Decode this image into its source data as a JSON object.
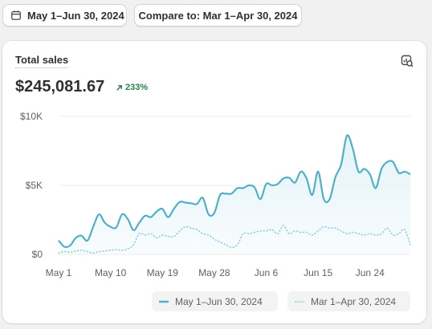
{
  "toolbar": {
    "date_range_label": "May 1–Jun 30, 2024",
    "compare_label": "Compare to: Mar 1–Apr 30, 2024"
  },
  "card": {
    "title": "Total sales",
    "total": "$245,081.67",
    "change": "233%",
    "icons": {
      "calendar": "calendar-icon",
      "trend": "arrow-up-right-icon",
      "explore": "chart-search-icon"
    }
  },
  "colors": {
    "current": "#4fb1c8",
    "current_fill": "#e4f3f8",
    "compare": "#8fd1df",
    "positive": "#287d4d",
    "grid": "#ececec"
  },
  "chart_data": {
    "type": "line",
    "y_ticks": [
      "$0",
      "$5K",
      "$10K"
    ],
    "y_tick_values": [
      0,
      5000,
      10000
    ],
    "ylim": [
      0,
      10000
    ],
    "x_ticks": [
      "May 1",
      "May 10",
      "May 19",
      "May 28",
      "Jun 6",
      "Jun 15",
      "Jun 24"
    ],
    "x_tick_index": [
      0,
      9,
      18,
      27,
      36,
      45,
      54
    ],
    "grid": true,
    "legend_position": "bottom-right",
    "series": [
      {
        "name": "May 1–Jun 30, 2024",
        "style": "solid",
        "values": [
          1000,
          550,
          650,
          1200,
          1350,
          1000,
          2000,
          2900,
          2300,
          2000,
          1950,
          2900,
          2550,
          1750,
          2300,
          2800,
          2700,
          3100,
          3300,
          2700,
          3300,
          3800,
          3750,
          3700,
          3650,
          4100,
          2900,
          3000,
          4300,
          4400,
          4400,
          4800,
          4800,
          5000,
          4850,
          4000,
          5100,
          5000,
          5100,
          5500,
          5550,
          5200,
          6000,
          5500,
          4300,
          6000,
          4000,
          4000,
          5600,
          6500,
          8600,
          7700,
          6000,
          6200,
          5800,
          4800,
          6200,
          6700,
          6700,
          5900,
          6000,
          5800
        ]
      },
      {
        "name": "Mar 1–Apr 30, 2024",
        "style": "dotted",
        "values": [
          100,
          200,
          150,
          250,
          300,
          200,
          100,
          200,
          250,
          300,
          350,
          300,
          400,
          700,
          1500,
          1400,
          1500,
          1200,
          1400,
          1300,
          1300,
          1700,
          2000,
          1900,
          1800,
          1500,
          1400,
          1100,
          900,
          700,
          500,
          700,
          1500,
          1500,
          1600,
          1700,
          1700,
          1800,
          1500,
          2100,
          1500,
          1700,
          1600,
          1600,
          1400,
          1700,
          2000,
          1900,
          1900,
          1700,
          1500,
          1600,
          1500,
          1400,
          1500,
          1400,
          1500,
          1900,
          1400,
          1500,
          1800,
          700
        ]
      }
    ]
  }
}
